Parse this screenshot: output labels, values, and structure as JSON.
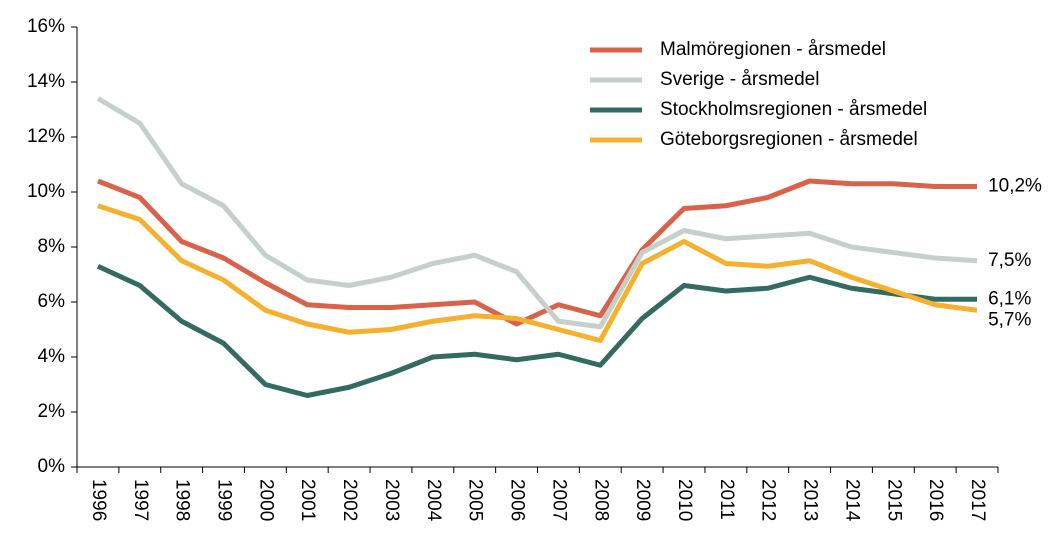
{
  "chart_data": {
    "type": "line",
    "categories": [
      "1996",
      "1997",
      "1998",
      "1999",
      "2000",
      "2001",
      "2002",
      "2003",
      "2004",
      "2005",
      "2006",
      "2007",
      "2008",
      "2009",
      "2010",
      "2011",
      "2012",
      "2013",
      "2014",
      "2015",
      "2016",
      "2017"
    ],
    "series": [
      {
        "name": "Malmöregionen - årsmedel",
        "color": "#d9634a",
        "values": [
          10.4,
          9.8,
          8.2,
          7.6,
          6.7,
          5.9,
          5.8,
          5.8,
          5.9,
          6.0,
          5.2,
          5.9,
          5.5,
          7.9,
          9.4,
          9.5,
          9.8,
          10.4,
          10.3,
          10.3,
          10.2,
          10.2
        ],
        "value_labels": [
          null,
          null,
          null,
          null,
          null,
          null,
          null,
          null,
          null,
          null,
          null,
          null,
          null,
          null,
          null,
          null,
          null,
          null,
          null,
          null,
          null,
          "10,2%"
        ]
      },
      {
        "name": "Sverige - årsmedel",
        "color": "#c6d0cb",
        "values": [
          13.4,
          12.5,
          10.3,
          9.5,
          7.7,
          6.8,
          6.6,
          6.9,
          7.4,
          7.7,
          7.1,
          5.3,
          5.1,
          7.8,
          8.6,
          8.3,
          8.4,
          8.5,
          8.0,
          7.8,
          7.6,
          7.5
        ],
        "value_labels": [
          null,
          null,
          null,
          null,
          null,
          null,
          null,
          null,
          null,
          null,
          null,
          null,
          null,
          null,
          null,
          null,
          null,
          null,
          null,
          null,
          null,
          "7,5%"
        ]
      },
      {
        "name": "Stockholmsregionen - årsmedel",
        "color": "#336b63",
        "values": [
          7.3,
          6.6,
          5.3,
          4.5,
          3.0,
          2.6,
          2.9,
          3.4,
          4.0,
          4.1,
          3.9,
          4.1,
          3.7,
          5.4,
          6.6,
          6.4,
          6.5,
          6.9,
          6.5,
          6.3,
          6.1,
          6.1
        ],
        "value_labels": [
          null,
          null,
          null,
          null,
          null,
          null,
          null,
          null,
          null,
          null,
          null,
          null,
          null,
          null,
          null,
          null,
          null,
          null,
          null,
          null,
          null,
          "6,1%"
        ]
      },
      {
        "name": "Göteborgsregionen - årsmedel",
        "color": "#f5b12e",
        "values": [
          9.5,
          9.0,
          7.5,
          6.8,
          5.7,
          5.2,
          4.9,
          5.0,
          5.3,
          5.5,
          5.4,
          5.0,
          4.6,
          7.4,
          8.2,
          7.4,
          7.3,
          7.5,
          6.9,
          6.4,
          5.9,
          5.7
        ],
        "value_labels": [
          null,
          null,
          null,
          null,
          null,
          null,
          null,
          null,
          null,
          null,
          null,
          null,
          null,
          null,
          null,
          null,
          null,
          null,
          null,
          null,
          null,
          "5,7%"
        ]
      }
    ],
    "ylim": [
      0,
      16
    ],
    "yticks": [
      {
        "value": 0,
        "label": "0%"
      },
      {
        "value": 2,
        "label": "2%"
      },
      {
        "value": 4,
        "label": "4%"
      },
      {
        "value": 6,
        "label": "6%"
      },
      {
        "value": 8,
        "label": "8%"
      },
      {
        "value": 10,
        "label": "10%"
      },
      {
        "value": 12,
        "label": "12%"
      },
      {
        "value": 14,
        "label": "14%"
      },
      {
        "value": 16,
        "label": "16%"
      }
    ],
    "grid": false,
    "legend": "top-right"
  }
}
